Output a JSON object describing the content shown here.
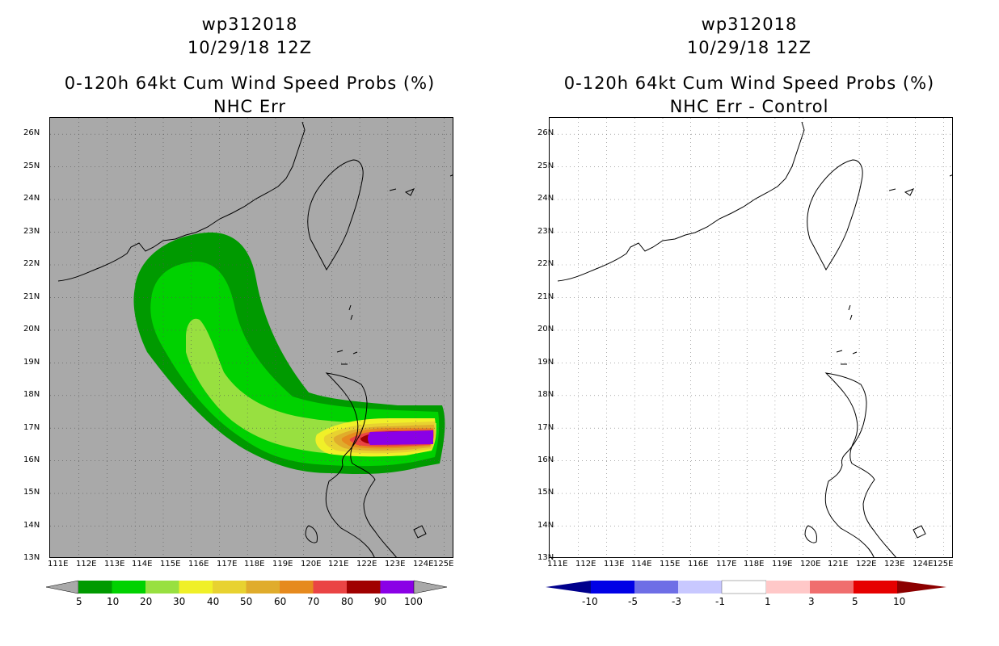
{
  "left": {
    "title_lines": [
      "wp312018",
      "10/29/18 12Z",
      "0-120h 64kt Cum Wind Speed Probs (%)",
      "NHC Err"
    ],
    "colorbar": {
      "labels": [
        "5",
        "10",
        "20",
        "30",
        "40",
        "50",
        "60",
        "70",
        "80",
        "90",
        "100"
      ],
      "colors": [
        "#009a00",
        "#00d200",
        "#98e040",
        "#f0f028",
        "#e8d230",
        "#e0ac2c",
        "#e68a1e",
        "#ea4444",
        "#a00000",
        "#8a00e6"
      ],
      "below_color": "#a9a9a9",
      "above_color": "#a9a9a9"
    }
  },
  "right": {
    "title_lines": [
      "wp312018",
      "10/29/18 12Z",
      "0-120h 64kt Cum Wind Speed Probs (%)",
      "NHC Err - Control"
    ],
    "colorbar": {
      "labels": [
        "-10",
        "-5",
        "-3",
        "-1",
        "1",
        "3",
        "5",
        "10"
      ],
      "colors": [
        "#0000e6",
        "#6e6ee6",
        "#c8c8ff",
        "#ffffff",
        "#ffc8c8",
        "#f06e6e",
        "#e60000"
      ],
      "below_color": "#00008c",
      "above_color": "#8c0000"
    }
  },
  "axes": {
    "lat_labels": [
      "26N",
      "25N",
      "24N",
      "23N",
      "22N",
      "21N",
      "20N",
      "19N",
      "18N",
      "17N",
      "16N",
      "15N",
      "14N",
      "13N"
    ],
    "lon_labels": [
      "111E",
      "112E",
      "113E",
      "114E",
      "115E",
      "116E",
      "117E",
      "118E",
      "119E",
      "120E",
      "121E",
      "122E",
      "123E",
      "124E",
      "125E"
    ],
    "lat_range": [
      13,
      26.5
    ],
    "lon_range": [
      111,
      125.4
    ]
  }
}
